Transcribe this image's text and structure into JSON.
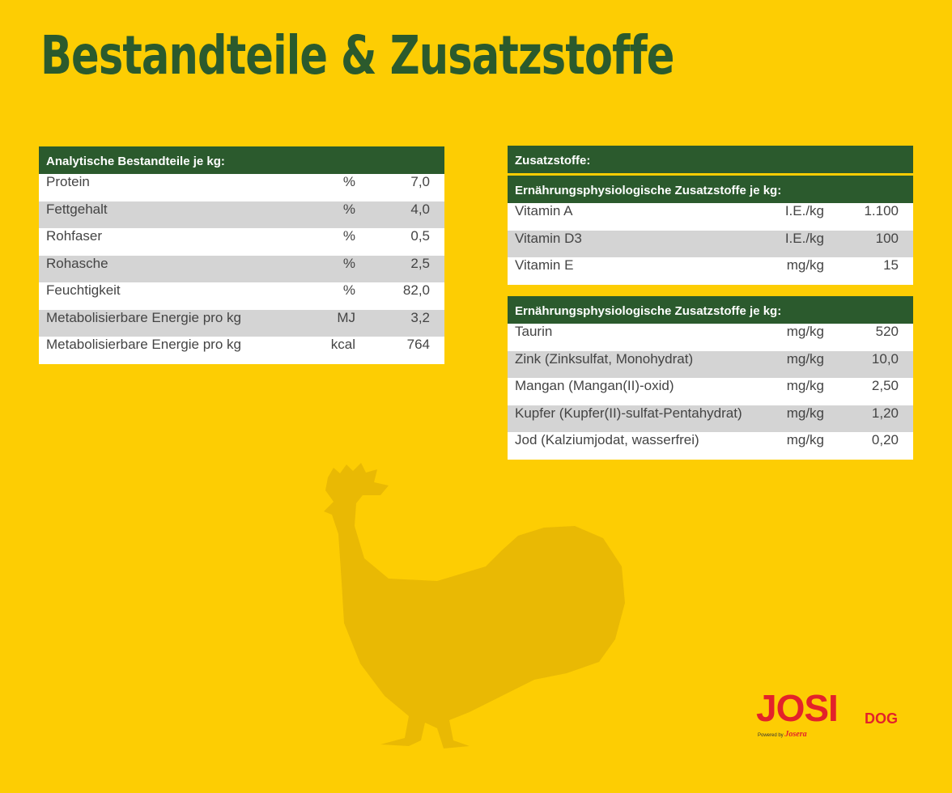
{
  "title": "Bestandteile & Zusatzstoffe",
  "left_table": {
    "header": "Analytische Bestandteile je kg:",
    "rows": [
      [
        "Protein",
        "%",
        "7,0"
      ],
      [
        "Fettgehalt",
        "%",
        "4,0"
      ],
      [
        "Rohfaser",
        "%",
        "0,5"
      ],
      [
        "Rohasche",
        "%",
        "2,5"
      ],
      [
        "Feuchtigkeit",
        "%",
        "82,0"
      ],
      [
        "Metabolisierbare Energie pro kg",
        "MJ",
        "3,2"
      ],
      [
        "Metabolisierbare Energie pro kg",
        "kcal",
        "764"
      ]
    ]
  },
  "right_section": {
    "header": "Zusatzstoffe:",
    "tables": [
      {
        "header": "Ernährungsphysiologische Zusatzstoffe je kg:",
        "rows": [
          [
            "Vitamin A",
            "I.E./kg",
            "1.100"
          ],
          [
            "Vitamin D3",
            "I.E./kg",
            "100"
          ],
          [
            "Vitamin E",
            "mg/kg",
            "15"
          ]
        ]
      },
      {
        "header": "Ernährungsphysiologische Zusatzstoffe je kg:",
        "rows": [
          [
            "Taurin",
            "mg/kg",
            "520"
          ],
          [
            "Zink (Zinksulfat, Monohydrat)",
            "mg/kg",
            "10,0"
          ],
          [
            "Mangan (Mangan(II)-oxid)",
            "mg/kg",
            "2,50"
          ],
          [
            "Kupfer (Kupfer(II)-sulfat-Pentahydrat)",
            "mg/kg",
            "1,20"
          ],
          [
            "Jod (Kalziumjodat, wasserfrei)",
            "mg/kg",
            "0,20"
          ]
        ]
      }
    ]
  },
  "logo": {
    "brand": "JOSI",
    "sub": "DOG",
    "powered_by": "Powered by",
    "maker": "Josera"
  }
}
